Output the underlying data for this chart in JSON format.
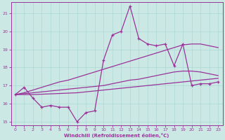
{
  "xlabel": "Windchill (Refroidissement éolien,°C)",
  "bg_color": "#cce8e4",
  "line_color": "#993399",
  "x": [
    0,
    1,
    2,
    3,
    4,
    5,
    6,
    7,
    8,
    9,
    10,
    11,
    12,
    13,
    14,
    15,
    16,
    17,
    18,
    19,
    20,
    21,
    22,
    23
  ],
  "y_main": [
    16.5,
    16.9,
    16.3,
    15.8,
    15.9,
    15.8,
    15.8,
    15.0,
    15.5,
    15.6,
    18.4,
    19.8,
    20.0,
    21.4,
    19.6,
    19.3,
    19.2,
    19.3,
    18.1,
    19.3,
    17.0,
    17.1,
    17.1,
    17.2
  ],
  "y_upper": [
    16.5,
    16.6,
    16.75,
    16.9,
    17.05,
    17.2,
    17.3,
    17.45,
    17.6,
    17.75,
    17.9,
    18.05,
    18.2,
    18.35,
    18.5,
    18.65,
    18.8,
    18.95,
    19.1,
    19.25,
    19.3,
    19.3,
    19.2,
    19.1
  ],
  "y_mid": [
    16.5,
    16.55,
    16.6,
    16.65,
    16.7,
    16.75,
    16.8,
    16.85,
    16.9,
    16.95,
    17.0,
    17.1,
    17.2,
    17.3,
    17.35,
    17.45,
    17.55,
    17.65,
    17.75,
    17.8,
    17.8,
    17.75,
    17.65,
    17.55
  ],
  "y_lower": [
    16.5,
    16.5,
    16.5,
    16.52,
    16.54,
    16.56,
    16.58,
    16.6,
    16.65,
    16.7,
    16.75,
    16.8,
    16.85,
    16.9,
    16.95,
    17.0,
    17.05,
    17.1,
    17.15,
    17.2,
    17.25,
    17.3,
    17.35,
    17.4
  ],
  "ylim": [
    14.8,
    21.6
  ],
  "xlim": [
    -0.5,
    23.5
  ],
  "yticks": [
    15,
    16,
    17,
    18,
    19,
    20,
    21
  ],
  "xticks": [
    0,
    1,
    2,
    3,
    4,
    5,
    6,
    7,
    8,
    9,
    10,
    11,
    12,
    13,
    14,
    15,
    16,
    17,
    18,
    19,
    20,
    21,
    22,
    23
  ],
  "grid_color": "#aad8d3"
}
